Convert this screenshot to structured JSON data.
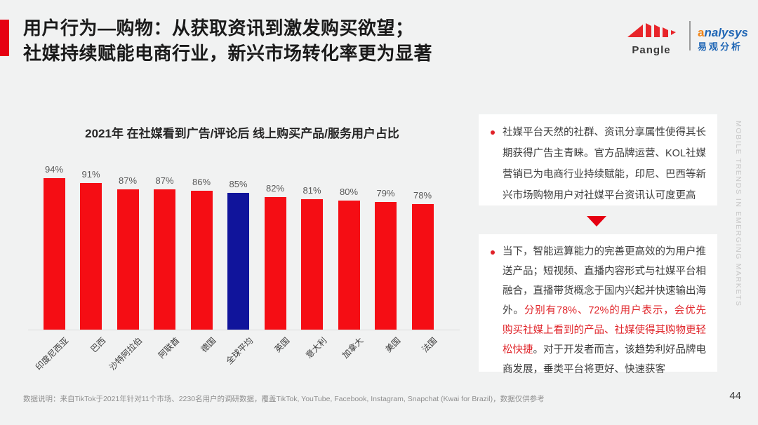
{
  "slide": {
    "title_line1": "用户行为—购物：从获取资讯到激发购买欲望；",
    "title_line2": "社媒持续赋能电商行业，新兴市场转化率更为显著",
    "watermark_vertical": "MOBILE TRENDS IN EMERGING MARKETS",
    "footnote": "数据说明：来自TikTok于2021年针对11个市场、2230名用户的调研数据，覆盖TikTok, YouTube, Facebook, Instagram, Snapchat (Kwai for Brazil)，数据仅供参考",
    "page_number": "44"
  },
  "logos": {
    "pangle_label": "Pangle",
    "analysys_accent_letter": "a",
    "analysys_rest": "nalysys",
    "analysys_cn": "易观分析"
  },
  "chart_data": {
    "type": "bar",
    "title": "2021年 在社媒看到广告/评论后 线上购买产品/服务用户占比",
    "categories": [
      "印度尼西亚",
      "巴西",
      "沙特阿拉伯",
      "阿联酋",
      "德国",
      "全球平均",
      "英国",
      "意大利",
      "加拿大",
      "美国",
      "法国"
    ],
    "values": [
      94,
      91,
      87,
      87,
      86,
      85,
      82,
      81,
      80,
      79,
      78
    ],
    "unit": "%",
    "value_labels": true,
    "highlight_index": 5,
    "bar_color": "#f50d14",
    "highlight_color": "#10149b",
    "xlabel": "",
    "ylabel": "",
    "ylim": [
      0,
      100
    ],
    "grid": false,
    "legend": "none"
  },
  "insights": {
    "block1": [
      {
        "text": "社媒平台天然的社群、资讯分享属性使得其长期获得广告主青睐。官方品牌运营、KOL社媒营销已为电商行业持续赋能，印尼、巴西等新兴市场购物用户对社媒平台资讯认可度更高",
        "color": "#3d3d3d"
      }
    ],
    "block2": [
      {
        "text": "当下，智能运算能力的完善更高效的为用户推送产品；短视频、直播内容形式与社媒平台相融合，直播带货概念于国内兴起并快速输出海外。",
        "color": "#3d3d3d"
      },
      {
        "text": "分别有78%、72%的用户表示，会优先购买社媒上看到的产品、社媒使得其购物更轻松快捷",
        "color": "#e0262b"
      },
      {
        "text": "。对于开发者而言，该趋势利好品牌电商发展，垂类平台将更好、快速获客",
        "color": "#3d3d3d"
      }
    ]
  },
  "colors": {
    "background": "#f1f2f2",
    "accent_red": "#e60012",
    "bar_red": "#f50d14",
    "bar_blue": "#10149b",
    "body_text": "#3d3d3d",
    "highlight_text_red": "#e0262b",
    "analysys_blue": "#1f66b5",
    "analysys_orange": "#f08519"
  }
}
